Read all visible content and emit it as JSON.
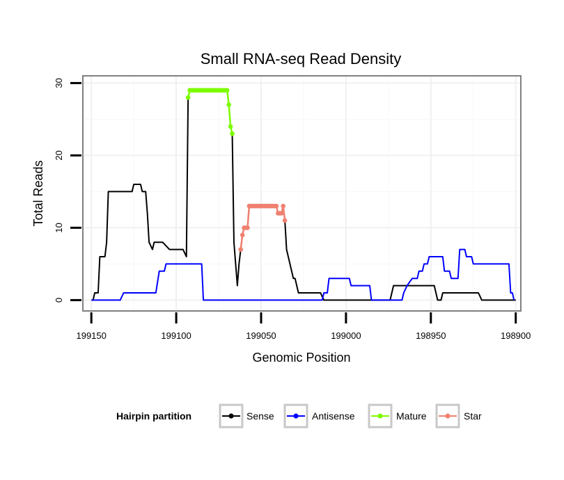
{
  "chart_data": {
    "type": "line",
    "title": "Small RNA-seq Read Density",
    "xlabel": "Genomic Position",
    "ylabel": "Total Reads",
    "x_reversed": true,
    "xlim": [
      199155,
      198897
    ],
    "ylim": [
      -1.5,
      31
    ],
    "x_ticks": [
      199150,
      199100,
      199050,
      199000,
      198950,
      198900
    ],
    "x_tick_labels": [
      "199150",
      "199100",
      "199050",
      "199000",
      "198950",
      "198900"
    ],
    "y_ticks": [
      0,
      10,
      20,
      30
    ],
    "y_tick_labels": [
      "0",
      "10",
      "20",
      "30"
    ],
    "grid": true,
    "legend": {
      "title": "Hairpin partition",
      "placement": "bottom",
      "entries": [
        "Sense",
        "Antisense",
        "Mature",
        "Star"
      ]
    },
    "series": [
      {
        "name": "Sense",
        "color": "#000000",
        "points": [
          [
            199150,
            0
          ],
          [
            199149,
            0
          ],
          [
            199148,
            1
          ],
          [
            199146,
            1
          ],
          [
            199145,
            6
          ],
          [
            199142,
            6
          ],
          [
            199141,
            8
          ],
          [
            199140,
            15
          ],
          [
            199126,
            15
          ],
          [
            199125,
            16
          ],
          [
            199121,
            16
          ],
          [
            199120,
            15
          ],
          [
            199118,
            15
          ],
          [
            199117,
            12
          ],
          [
            199116,
            8
          ],
          [
            199114,
            7
          ],
          [
            199113,
            8
          ],
          [
            199109,
            8
          ],
          [
            199108,
            8
          ],
          [
            199104,
            7
          ],
          [
            199096,
            7
          ],
          [
            199094,
            6
          ],
          [
            199093,
            28
          ],
          [
            199092,
            29
          ],
          [
            199070,
            29
          ],
          [
            199069,
            27
          ],
          [
            199068,
            24
          ],
          [
            199067,
            23
          ],
          [
            199066,
            8
          ],
          [
            199064,
            2
          ],
          [
            199063,
            5
          ],
          [
            199062,
            7
          ],
          [
            199061,
            9
          ],
          [
            199060,
            10
          ],
          [
            199058,
            10
          ],
          [
            199057,
            13
          ],
          [
            199045,
            13
          ],
          [
            199041,
            13
          ],
          [
            199040,
            12
          ],
          [
            199038,
            12
          ],
          [
            199037,
            13
          ],
          [
            199036,
            11
          ],
          [
            199035,
            7
          ],
          [
            199031,
            3
          ],
          [
            199030,
            3
          ],
          [
            199028,
            1
          ],
          [
            199018,
            1
          ],
          [
            199016,
            1
          ],
          [
            199015,
            1
          ],
          [
            199013,
            0
          ],
          [
            198974,
            0
          ],
          [
            198972,
            2
          ],
          [
            198948,
            2
          ],
          [
            198946,
            0
          ],
          [
            198944,
            0
          ],
          [
            198943,
            1
          ],
          [
            198922,
            1
          ],
          [
            198920,
            0
          ],
          [
            198900,
            0
          ]
        ]
      },
      {
        "name": "Antisense",
        "color": "#0000ff",
        "points": [
          [
            199150,
            0
          ],
          [
            199133,
            0
          ],
          [
            199131,
            1
          ],
          [
            199112,
            1
          ],
          [
            199110,
            4
          ],
          [
            199107,
            4
          ],
          [
            199106,
            5
          ],
          [
            199085,
            5
          ],
          [
            199084,
            0
          ],
          [
            199014,
            0
          ],
          [
            199013,
            1
          ],
          [
            199011,
            1
          ],
          [
            199010,
            3
          ],
          [
            198998,
            3
          ],
          [
            198997,
            2
          ],
          [
            198986,
            2
          ],
          [
            198985,
            0
          ],
          [
            198967,
            0
          ],
          [
            198966,
            1
          ],
          [
            198964,
            2
          ],
          [
            198961,
            3
          ],
          [
            198958,
            3
          ],
          [
            198957,
            4
          ],
          [
            198955,
            4
          ],
          [
            198954,
            5
          ],
          [
            198952,
            5
          ],
          [
            198951,
            6
          ],
          [
            198943,
            6
          ],
          [
            198942,
            4
          ],
          [
            198939,
            4
          ],
          [
            198938,
            3
          ],
          [
            198934,
            3
          ],
          [
            198933,
            7
          ],
          [
            198930,
            7
          ],
          [
            198929,
            6
          ],
          [
            198926,
            6
          ],
          [
            198925,
            5
          ],
          [
            198913,
            5
          ],
          [
            198912,
            5
          ],
          [
            198904,
            5
          ],
          [
            198903,
            1
          ],
          [
            198902,
            1
          ],
          [
            198901,
            0
          ]
        ]
      },
      {
        "name": "Mature",
        "color": "#7cfc00",
        "points": [
          [
            199093,
            28
          ],
          [
            199092,
            29
          ],
          [
            199091,
            29
          ],
          [
            199090,
            29
          ],
          [
            199089,
            29
          ],
          [
            199088,
            29
          ],
          [
            199087,
            29
          ],
          [
            199086,
            29
          ],
          [
            199085,
            29
          ],
          [
            199084,
            29
          ],
          [
            199083,
            29
          ],
          [
            199082,
            29
          ],
          [
            199081,
            29
          ],
          [
            199080,
            29
          ],
          [
            199079,
            29
          ],
          [
            199078,
            29
          ],
          [
            199077,
            29
          ],
          [
            199076,
            29
          ],
          [
            199075,
            29
          ],
          [
            199074,
            29
          ],
          [
            199073,
            29
          ],
          [
            199072,
            29
          ],
          [
            199071,
            29
          ],
          [
            199070,
            29
          ],
          [
            199069,
            27
          ],
          [
            199068,
            24
          ],
          [
            199067,
            23
          ]
        ]
      },
      {
        "name": "Star",
        "color": "#f08070",
        "points": [
          [
            199062,
            7
          ],
          [
            199061,
            9
          ],
          [
            199060,
            10
          ],
          [
            199059,
            10
          ],
          [
            199058,
            10
          ],
          [
            199057,
            13
          ],
          [
            199056,
            13
          ],
          [
            199055,
            13
          ],
          [
            199054,
            13
          ],
          [
            199053,
            13
          ],
          [
            199052,
            13
          ],
          [
            199051,
            13
          ],
          [
            199050,
            13
          ],
          [
            199049,
            13
          ],
          [
            199048,
            13
          ],
          [
            199047,
            13
          ],
          [
            199046,
            13
          ],
          [
            199045,
            13
          ],
          [
            199044,
            13
          ],
          [
            199043,
            13
          ],
          [
            199042,
            13
          ],
          [
            199041,
            13
          ],
          [
            199040,
            12
          ],
          [
            199039,
            12
          ],
          [
            199038,
            12
          ],
          [
            199037,
            13
          ],
          [
            199036,
            11
          ]
        ]
      }
    ]
  }
}
